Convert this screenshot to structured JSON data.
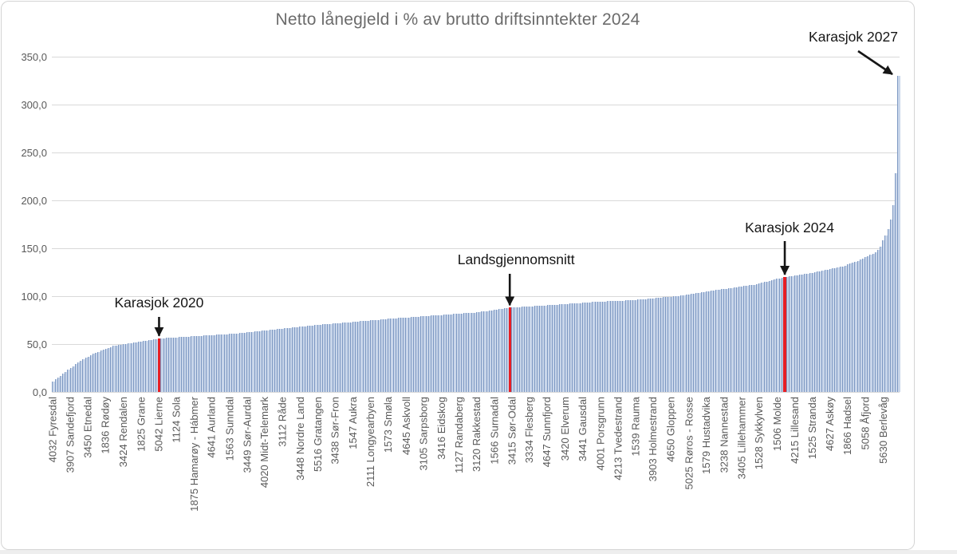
{
  "chart_data": {
    "type": "bar",
    "title": "Netto lånegjeld i % av brutto driftsinntekter 2024",
    "ylim": [
      0,
      350
    ],
    "grid": true,
    "y_axis": {
      "tick_values": [
        0,
        50,
        100,
        150,
        200,
        250,
        300,
        350
      ],
      "tick_labels": [
        "0,0",
        "50,0",
        "100,0",
        "150,0",
        "200,0",
        "250,0",
        "300,0",
        "350,0"
      ]
    },
    "x_axis": {
      "label_every_n_bars": 7,
      "labels": [
        "4032 Fyresdal",
        "3907 Sandefjord",
        "3450 Etnedal",
        "1836 Rødøy",
        "3424 Rendalen",
        "1825 Grane",
        "5042 Lierne",
        "1124 Sola",
        "1875 Hamarøy - Hábmer",
        "4641 Aurland",
        "1563 Sunndal",
        "3449 Sør-Aurdal",
        "4020 Midt-Telemark",
        "3112 Råde",
        "3448 Nordre Land",
        "5516 Gratangen",
        "3438 Sør-Fron",
        "1547 Aukra",
        "2111 Longyearbyen",
        "1573 Smøla",
        "4645 Askvoll",
        "3105 Sarpsborg",
        "3416 Eidskog",
        "1127 Randaberg",
        "3120 Rakkestad",
        "1566 Surnadal",
        "3415 Sør-Odal",
        "3334 Flesberg",
        "4647 Sunnfjord",
        "3420 Elverum",
        "3441 Gausdal",
        "4001 Porsgrunn",
        "4213 Tvedestrand",
        "1539 Rauma",
        "3903 Holmestrand",
        "4650 Gloppen",
        "5025 Røros - Rosse",
        "1579 Hustadvika",
        "3238 Nannestad",
        "3405 Lillehammer",
        "1528 Sykkylven",
        "1506 Molde",
        "4215 Lillesand",
        "1525 Stranda",
        "4627 Askøy",
        "1866 Hadsel",
        "5058 Åfjord",
        "5630 Berlevåg"
      ]
    },
    "n_bars": 336,
    "values": [
      11,
      13,
      15,
      17,
      19,
      21,
      23,
      25,
      27,
      29,
      31,
      32.5,
      34,
      35.5,
      37,
      38.5,
      40,
      41,
      42,
      43,
      44,
      45,
      46,
      47,
      48,
      48.5,
      49,
      49.5,
      50,
      50.4,
      50.8,
      51.2,
      51.6,
      52,
      52.4,
      52.8,
      53.2,
      53.6,
      54,
      54.4,
      54.8,
      55.2,
      55.6,
      56,
      56.2,
      56.3,
      56.5,
      56.7,
      56.8,
      57,
      57.2,
      57.3,
      57.5,
      57.7,
      57.8,
      58,
      58.2,
      58.3,
      58.5,
      58.7,
      58.8,
      59,
      59.2,
      59.3,
      59.5,
      59.7,
      59.8,
      60,
      60.2,
      60.3,
      60.5,
      60.7,
      60.8,
      61,
      61.3,
      61.6,
      61.8,
      62.1,
      62.4,
      62.7,
      63,
      63.2,
      63.5,
      63.8,
      64.1,
      64.4,
      64.6,
      64.9,
      65.2,
      65.5,
      65.8,
      66,
      66.3,
      66.6,
      66.9,
      67.2,
      67.4,
      67.7,
      68,
      68.3,
      68.6,
      68.8,
      69.1,
      69.4,
      69.7,
      70,
      70.2,
      70.5,
      70.7,
      70.9,
      71.1,
      71.4,
      71.6,
      71.8,
      72,
      72.3,
      72.5,
      72.7,
      72.9,
      73.2,
      73.4,
      73.6,
      73.8,
      74.1,
      74.3,
      74.5,
      74.7,
      75,
      75.2,
      75.4,
      75.6,
      75.9,
      76.1,
      76.3,
      76.5,
      76.8,
      77,
      77.2,
      77.4,
      77.6,
      77.8,
      77.9,
      78.1,
      78.3,
      78.5,
      78.7,
      78.9,
      79.1,
      79.3,
      79.4,
      79.6,
      79.8,
      80,
      80.2,
      80.4,
      80.6,
      80.8,
      80.9,
      81.1,
      81.3,
      81.5,
      81.7,
      81.9,
      82.1,
      82.3,
      82.4,
      82.6,
      82.8,
      83,
      83.4,
      83.8,
      84.2,
      84.5,
      84.9,
      85.3,
      85.7,
      86.1,
      86.5,
      86.8,
      87.2,
      87.6,
      88,
      88.2,
      88.3,
      88.5,
      88.7,
      88.8,
      89,
      89.2,
      89.3,
      89.5,
      89.7,
      89.8,
      90,
      90.2,
      90.3,
      90.5,
      90.7,
      90.8,
      91,
      91.2,
      91.4,
      91.6,
      91.8,
      91.9,
      92.1,
      92.3,
      92.5,
      92.7,
      92.8,
      93,
      93.2,
      93.4,
      93.6,
      93.8,
      94,
      94.1,
      94.3,
      94.4,
      94.5,
      94.6,
      94.8,
      94.9,
      95,
      95.1,
      95.3,
      95.4,
      95.5,
      95.6,
      95.8,
      95.9,
      96,
      96.3,
      96.5,
      96.8,
      97,
      97.3,
      97.5,
      97.8,
      98,
      98.3,
      98.5,
      98.8,
      99,
      99.3,
      99.5,
      99.8,
      100,
      100.4,
      100.8,
      101.2,
      101.6,
      102,
      102.4,
      102.8,
      103.2,
      103.6,
      104,
      104.4,
      104.8,
      105.2,
      105.6,
      106,
      106.4,
      106.8,
      107.1,
      107.5,
      107.9,
      108.3,
      108.6,
      109,
      109.4,
      109.8,
      110.1,
      110.5,
      110.9,
      111.3,
      111.6,
      112,
      112.7,
      113.3,
      114,
      114.7,
      115.3,
      116,
      116.7,
      117.3,
      118,
      118.7,
      119.3,
      120,
      120.4,
      120.8,
      121.2,
      121.6,
      122,
      122.4,
      122.8,
      123.2,
      123.6,
      124,
      124.5,
      125.1,
      125.6,
      126.2,
      126.7,
      127.2,
      127.8,
      128.3,
      128.8,
      129.4,
      129.9,
      130.5,
      131,
      132,
      133,
      134,
      135,
      136,
      137,
      138.2,
      139.4,
      140.6,
      141.8,
      143,
      144.5,
      146,
      148,
      152,
      158,
      163,
      170,
      180,
      195,
      228,
      330
    ],
    "highlighted_bars": [
      {
        "bar_index": 42,
        "value": 56,
        "color": "#e61e25"
      },
      {
        "bar_index": 181,
        "value": 88,
        "color": "#e61e25"
      },
      {
        "bar_index": 290,
        "value": 120,
        "color": "#e61e25"
      }
    ],
    "annotations": [
      {
        "text": "Karasjok 2020",
        "bar_index": 42,
        "value": 56
      },
      {
        "text": "Landsgjennomsnitt",
        "bar_index": 181,
        "value": 88
      },
      {
        "text": "Karasjok 2024",
        "bar_index": 290,
        "value": 120
      },
      {
        "text": "Karasjok 2027",
        "bar_index": 335,
        "value": 330
      }
    ],
    "colors": {
      "bar_fill": "#c9d6ea",
      "bar_edge": "#7e99c3",
      "highlight": "#e61e25",
      "gridline": "#d9d9d9",
      "title_text": "#6b6b6b",
      "axis_text": "#595959",
      "annotation_text": "#161616"
    },
    "legend": "none"
  }
}
